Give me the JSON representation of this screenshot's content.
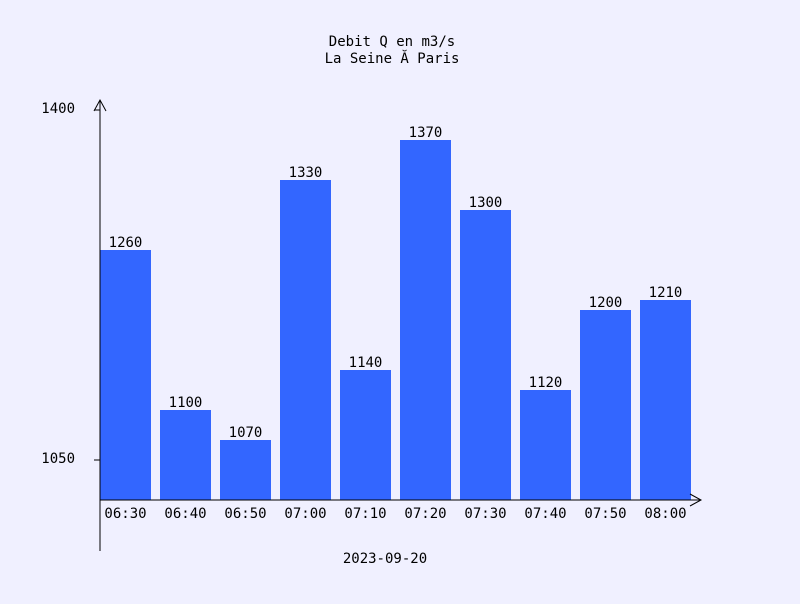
{
  "chart_data": {
    "type": "bar",
    "title": "Debit Q en m3/s",
    "subtitle": "La Seine Ă  Paris",
    "xlabel": "2023-09-20",
    "ylabel": "",
    "categories": [
      "06:30",
      "06:40",
      "06:50",
      "07:00",
      "07:10",
      "07:20",
      "07:30",
      "07:40",
      "07:50",
      "08:00"
    ],
    "values": [
      1260,
      1100,
      1070,
      1330,
      1140,
      1370,
      1300,
      1120,
      1200,
      1210
    ],
    "ylim": [
      1010,
      1400
    ],
    "yticks": [
      1050,
      1400
    ],
    "ytick_labels": [
      "1050",
      "1400"
    ],
    "grid": false,
    "legend": "none",
    "colors": {
      "background": "#f0f0ff",
      "bar": "#3366ff",
      "text": "#000000",
      "axis": "#000000"
    }
  }
}
